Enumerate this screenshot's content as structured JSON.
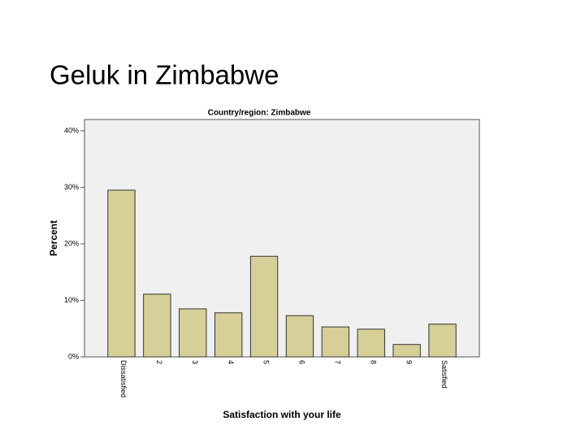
{
  "title": "Geluk in Zimbabwe",
  "chart_data": {
    "type": "bar",
    "title": "Country/region: Zimbabwe",
    "x_label": "Satisfaction with your life",
    "y_label": "Percent",
    "categories": [
      "Dissatisfied",
      "2",
      "3",
      "4",
      "5",
      "6",
      "7",
      "8",
      "9",
      "Satisfied"
    ],
    "values": [
      29.5,
      11.1,
      8.5,
      7.8,
      17.8,
      7.3,
      5.3,
      4.9,
      2.2,
      5.8
    ],
    "color": "#d6cf98",
    "ylim": [
      0,
      42
    ],
    "yticks": [
      {
        "value": 0,
        "label": "0%"
      },
      {
        "value": 10,
        "label": "10%"
      },
      {
        "value": 20,
        "label": "20%"
      },
      {
        "value": 30,
        "label": "30%"
      },
      {
        "value": 40,
        "label": "40%"
      }
    ],
    "grid": false
  }
}
